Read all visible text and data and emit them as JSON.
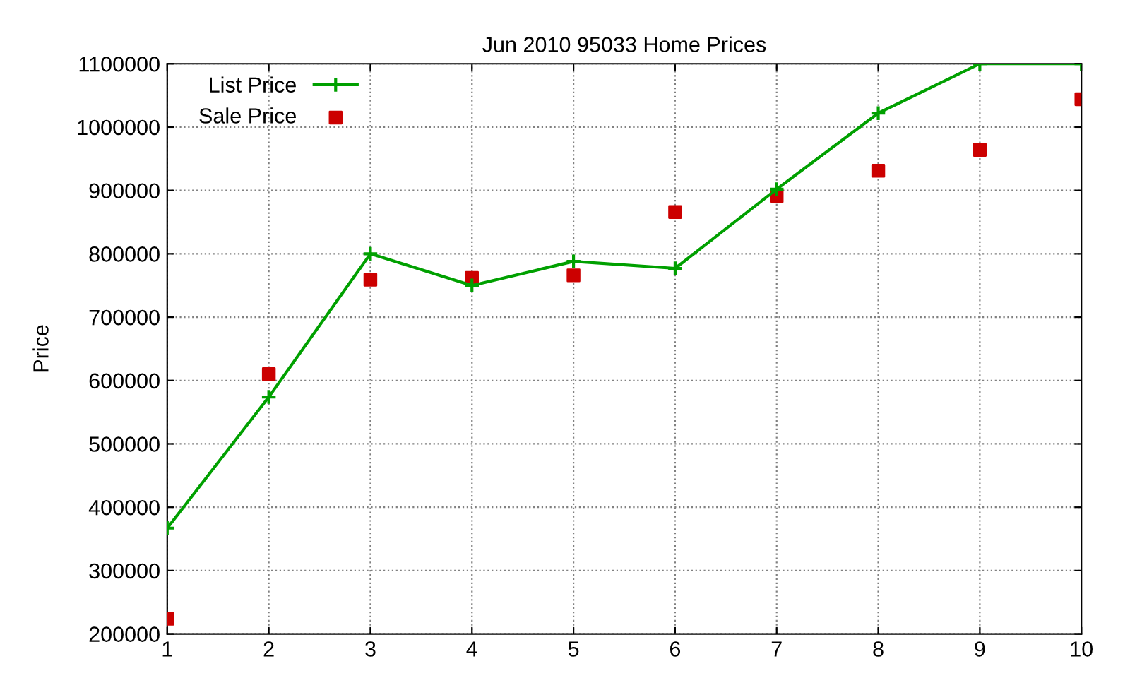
{
  "chart_data": {
    "type": "line",
    "title": "Jun 2010 95033 Home Prices",
    "ylabel": "Price",
    "x": [
      1,
      2,
      3,
      4,
      5,
      6,
      7,
      8,
      9,
      10
    ],
    "series": [
      {
        "name": "List Price",
        "type": "line",
        "color": "#00a000",
        "marker": "cross",
        "line_style": "solid",
        "values": [
          367000,
          574000,
          800000,
          750000,
          788000,
          777000,
          902000,
          1022000,
          1100000,
          1100000
        ]
      },
      {
        "name": "Sale Price",
        "type": "scatter",
        "color": "#cc0000",
        "marker": "square",
        "values": [
          224000,
          610000,
          759000,
          762000,
          766000,
          866000,
          891000,
          931000,
          964000,
          1044000
        ]
      }
    ],
    "xlim": [
      1,
      10
    ],
    "xticks": [
      1,
      2,
      3,
      4,
      5,
      6,
      7,
      8,
      9,
      10
    ],
    "ylim": [
      200000,
      1100000
    ],
    "yticks": [
      200000,
      300000,
      400000,
      500000,
      600000,
      700000,
      800000,
      900000,
      1000000,
      1100000
    ],
    "grid": true,
    "legend": "top left"
  }
}
